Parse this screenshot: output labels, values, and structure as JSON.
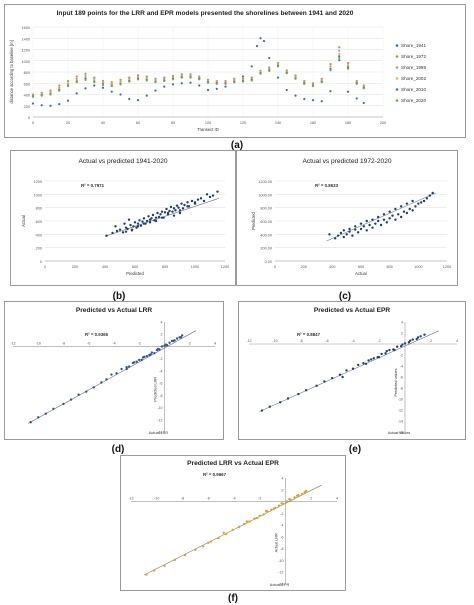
{
  "labels": {
    "a": "(a)",
    "b": "(b)",
    "c": "(c)",
    "d": "(d)",
    "e": "(e)",
    "f": "(f)"
  },
  "chart_data": [
    {
      "id": "a",
      "type": "line",
      "title": "Input 189 points for the LRR and EPR models presented the shorelines between 1941 and 2020",
      "xlabel": "Transect ID",
      "ylabel": "distance according to baseline [m]",
      "xlim": [
        0,
        200
      ],
      "ylim": [
        0,
        1600
      ],
      "xticks": [
        0,
        20,
        40,
        60,
        80,
        100,
        120,
        140,
        160,
        180,
        200
      ],
      "yticks": [
        0,
        200,
        400,
        600,
        800,
        1000,
        1200,
        1400,
        1600
      ],
      "grid": true,
      "legend_position": "right",
      "series": [
        {
          "name": "Shore_1941",
          "color": "#3d6fb0",
          "x": [
            0,
            5,
            10,
            15,
            20,
            25,
            30,
            35,
            40,
            45,
            50,
            55,
            60,
            65,
            70,
            75,
            80,
            85,
            90,
            95,
            100,
            105,
            110,
            115,
            120,
            125,
            128,
            130,
            132,
            135,
            140,
            145,
            150,
            155,
            160,
            165,
            170,
            175,
            180,
            185,
            189
          ],
          "y": [
            240,
            210,
            200,
            230,
            290,
            420,
            510,
            560,
            520,
            450,
            400,
            320,
            300,
            380,
            470,
            540,
            580,
            600,
            610,
            560,
            480,
            500,
            540,
            620,
            720,
            900,
            1260,
            1400,
            1350,
            1050,
            700,
            480,
            380,
            320,
            300,
            280,
            460,
            1010,
            450,
            330,
            250
          ]
        },
        {
          "name": "Shore_1972",
          "color": "#e8823a",
          "x": [
            0,
            5,
            10,
            15,
            20,
            25,
            30,
            35,
            40,
            45,
            50,
            55,
            60,
            65,
            70,
            75,
            80,
            85,
            90,
            95,
            100,
            105,
            110,
            115,
            120,
            125,
            130,
            135,
            140,
            145,
            150,
            155,
            160,
            165,
            170,
            175,
            180,
            185,
            189
          ],
          "y": [
            400,
            430,
            470,
            560,
            640,
            720,
            770,
            700,
            640,
            620,
            660,
            700,
            740,
            720,
            680,
            700,
            730,
            760,
            760,
            720,
            660,
            640,
            640,
            680,
            680,
            700,
            820,
            880,
            960,
            830,
            740,
            640,
            600,
            680,
            940,
            1240,
            960,
            640,
            560
          ]
        },
        {
          "name": "Shore_1989",
          "color": "#a5a5a5",
          "x": [
            0,
            5,
            10,
            15,
            20,
            25,
            30,
            35,
            40,
            45,
            50,
            55,
            60,
            65,
            70,
            75,
            80,
            85,
            90,
            95,
            100,
            105,
            110,
            115,
            120,
            125,
            130,
            135,
            140,
            145,
            150,
            155,
            160,
            165,
            170,
            175,
            180,
            185,
            189
          ],
          "y": [
            390,
            410,
            440,
            520,
            600,
            680,
            730,
            680,
            620,
            600,
            630,
            680,
            720,
            700,
            660,
            680,
            710,
            740,
            740,
            700,
            640,
            620,
            620,
            660,
            660,
            680,
            800,
            860,
            940,
            820,
            720,
            620,
            580,
            660,
            900,
            1180,
            920,
            620,
            540
          ]
        },
        {
          "name": "Shore_2002",
          "color": "#f2b82b",
          "x": [
            0,
            5,
            10,
            15,
            20,
            25,
            30,
            35,
            40,
            45,
            50,
            55,
            60,
            65,
            70,
            75,
            80,
            85,
            90,
            95,
            100,
            105,
            110,
            115,
            120,
            125,
            130,
            135,
            140,
            145,
            150,
            155,
            160,
            165,
            170,
            175,
            180,
            185,
            189
          ],
          "y": [
            380,
            400,
            420,
            500,
            580,
            650,
            700,
            650,
            600,
            580,
            610,
            660,
            700,
            680,
            640,
            660,
            690,
            720,
            720,
            690,
            630,
            610,
            610,
            640,
            650,
            670,
            790,
            840,
            920,
            800,
            700,
            610,
            570,
            640,
            870,
            1120,
            900,
            610,
            530
          ]
        },
        {
          "name": "Shore_2010",
          "color": "#4472c4",
          "x": [
            0,
            5,
            10,
            15,
            20,
            25,
            30,
            35,
            40,
            45,
            50,
            55,
            60,
            65,
            70,
            75,
            80,
            85,
            90,
            95,
            100,
            105,
            110,
            115,
            120,
            125,
            130,
            135,
            140,
            145,
            150,
            155,
            160,
            165,
            170,
            175,
            180,
            185,
            189
          ],
          "y": [
            370,
            390,
            410,
            480,
            560,
            630,
            680,
            630,
            580,
            560,
            590,
            640,
            680,
            660,
            630,
            650,
            680,
            710,
            710,
            680,
            620,
            600,
            600,
            630,
            640,
            660,
            780,
            830,
            910,
            790,
            690,
            600,
            560,
            630,
            850,
            1080,
            880,
            600,
            520
          ]
        },
        {
          "name": "Shore_2020",
          "color": "#70ad47",
          "x": [
            0,
            5,
            10,
            15,
            20,
            25,
            30,
            35,
            40,
            45,
            50,
            55,
            60,
            65,
            70,
            75,
            80,
            85,
            90,
            95,
            100,
            105,
            110,
            115,
            120,
            125,
            130,
            135,
            140,
            145,
            150,
            155,
            160,
            165,
            170,
            175,
            180,
            185,
            189
          ],
          "y": [
            360,
            380,
            400,
            470,
            550,
            620,
            660,
            620,
            570,
            550,
            580,
            630,
            670,
            650,
            620,
            640,
            670,
            700,
            700,
            670,
            610,
            590,
            590,
            620,
            630,
            650,
            770,
            820,
            900,
            780,
            680,
            590,
            550,
            620,
            830,
            1050,
            860,
            590,
            510
          ]
        }
      ]
    },
    {
      "id": "b",
      "type": "scatter",
      "title": "Actual vs predicted 1941-2020",
      "xlabel": "Predicted",
      "ylabel": "Actual",
      "annotation": "R² = 0.7971",
      "xlim": [
        0,
        1200
      ],
      "ylim": [
        0,
        1200
      ],
      "xticks": [
        0,
        200,
        400,
        600,
        800,
        1000,
        1200
      ],
      "yticks": [
        0,
        200,
        400,
        600,
        800,
        1000,
        1200
      ],
      "marker_color": "#1f3f7a",
      "trendline": [
        [
          400,
          370
        ],
        [
          1160,
          940
        ]
      ],
      "x": [
        410,
        450,
        470,
        480,
        500,
        520,
        530,
        540,
        550,
        560,
        570,
        580,
        590,
        600,
        610,
        620,
        630,
        640,
        650,
        660,
        670,
        680,
        690,
        700,
        710,
        720,
        730,
        740,
        750,
        760,
        770,
        780,
        790,
        800,
        810,
        820,
        830,
        840,
        850,
        860,
        870,
        880,
        890,
        900,
        910,
        920,
        930,
        950,
        960,
        980,
        1000,
        1020,
        1040,
        1060,
        1080,
        1100,
        1120,
        1150,
        540,
        580,
        620,
        660,
        700,
        740,
        780,
        820,
        860,
        900,
        950,
        1000
      ],
      "y": [
        380,
        420,
        520,
        450,
        470,
        430,
        560,
        500,
        480,
        620,
        540,
        470,
        520,
        580,
        500,
        560,
        610,
        530,
        590,
        640,
        560,
        600,
        670,
        580,
        640,
        690,
        610,
        650,
        720,
        660,
        700,
        740,
        650,
        730,
        780,
        700,
        750,
        810,
        740,
        790,
        760,
        830,
        800,
        720,
        860,
        790,
        840,
        880,
        820,
        900,
        860,
        920,
        940,
        900,
        1000,
        960,
        980,
        1040,
        440,
        460,
        520,
        560,
        620,
        600,
        650,
        720,
        680,
        760,
        820,
        880
      ]
    },
    {
      "id": "c",
      "type": "scatter",
      "title": "Actual vs predicted 1972-2020",
      "xlabel": "Actual",
      "ylabel": "Predicted",
      "annotation": "R² = 0.8633",
      "xlim": [
        0,
        1200
      ],
      "ylim": [
        0,
        1200
      ],
      "xticks": [
        0,
        200,
        400,
        600,
        800,
        1000,
        1200
      ],
      "yticks": [
        "0.00",
        "200.00",
        "400.00",
        "600.00",
        "800.00",
        "1000.00",
        "1200.00"
      ],
      "marker_color": "#1f3f7a",
      "trendline": [
        [
          360,
          300
        ],
        [
          1120,
          1020
        ]
      ],
      "x": [
        380,
        420,
        440,
        460,
        480,
        500,
        520,
        540,
        560,
        580,
        600,
        620,
        640,
        660,
        680,
        700,
        720,
        740,
        760,
        780,
        800,
        820,
        840,
        860,
        880,
        900,
        920,
        940,
        960,
        980,
        1000,
        1020,
        1040,
        1060,
        1080,
        1100,
        480,
        520,
        560,
        600,
        640,
        680,
        720,
        760,
        800,
        840,
        880,
        920,
        960
      ],
      "y": [
        400,
        340,
        380,
        420,
        360,
        400,
        440,
        380,
        470,
        430,
        480,
        520,
        460,
        540,
        500,
        560,
        600,
        540,
        620,
        580,
        640,
        680,
        620,
        700,
        660,
        740,
        720,
        780,
        760,
        820,
        860,
        880,
        900,
        940,
        980,
        1020,
        460,
        480,
        520,
        560,
        600,
        620,
        660,
        700,
        740,
        780,
        820,
        860,
        900
      ]
    },
    {
      "id": "d",
      "type": "scatter",
      "title": "Predicted vs Actual LRR",
      "xlabel": "Actual LRR",
      "ylabel": "Predicted LRR",
      "annotation": "R² = 0.9366",
      "xlim": [
        -12,
        4
      ],
      "ylim": [
        -14,
        4
      ],
      "xticks": [
        -12,
        -10,
        -8,
        -6,
        -4,
        -2,
        0,
        2,
        4
      ],
      "yticks": [
        -14,
        -12,
        -10,
        -8,
        -6,
        -4,
        -2,
        0,
        2,
        4
      ],
      "marker_color": "#2f5597",
      "trendline": [
        [
          -10.8,
          -12.6
        ],
        [
          2.5,
          2.6
        ]
      ],
      "x": [
        -10.6,
        -10,
        -9.4,
        -8.8,
        -8,
        -7.4,
        -6.8,
        -6.2,
        -5.6,
        -5,
        -4.6,
        -4.2,
        -3.8,
        -3.4,
        -3,
        -2.8,
        -2.5,
        -2.2,
        -2,
        -1.8,
        -1.6,
        -1.4,
        -1.2,
        -1,
        -0.8,
        -0.6,
        -0.4,
        -0.2,
        0,
        0.2,
        0.4,
        0.6,
        0.8,
        1,
        1.2,
        1.4,
        -3,
        -2.4,
        -1.7,
        -1.1,
        -0.5,
        0.1,
        0.7,
        1.3
      ],
      "y": [
        -12.4,
        -11.6,
        -11,
        -10.2,
        -9.4,
        -8.7,
        -7.9,
        -7.4,
        -6.7,
        -5.9,
        -5.4,
        -4.6,
        -4.4,
        -3.7,
        -3.4,
        -3.3,
        -2.7,
        -2.5,
        -2.2,
        -2.2,
        -1.7,
        -1.6,
        -1.4,
        -1,
        -1.1,
        -0.6,
        -0.5,
        0,
        0.1,
        0.2,
        0.6,
        0.9,
        1,
        1.3,
        1.5,
        1.8,
        -3.7,
        -2.6,
        -1.8,
        -1.3,
        -0.4,
        0.3,
        0.9,
        1.5
      ]
    },
    {
      "id": "e",
      "type": "scatter",
      "title": "Predicted vs Actual EPR",
      "xlabel": "Actual values",
      "ylabel": "Predicted values",
      "annotation": "R² = 0.8847",
      "xlim": [
        -12,
        4
      ],
      "ylim": [
        -16,
        4
      ],
      "xticks": [
        -12,
        -10,
        -8,
        -6,
        -4,
        -2,
        0,
        2,
        4
      ],
      "yticks": [
        -16,
        -14,
        -12,
        -10,
        -8,
        -6,
        -4,
        -2,
        0,
        2,
        4
      ],
      "marker_color": "#1f3f7a",
      "trendline": [
        [
          -11.2,
          -12.3
        ],
        [
          2.6,
          2.4
        ]
      ],
      "x": [
        -11,
        -10.4,
        -9.6,
        -9,
        -8.2,
        -7.6,
        -6.8,
        -6.2,
        -5.6,
        -5,
        -4.5,
        -4,
        -3.6,
        -3.2,
        -2.8,
        -2.4,
        -2.1,
        -1.8,
        -1.5,
        -1.2,
        -0.9,
        -0.6,
        -0.3,
        0,
        0.3,
        0.6,
        0.9,
        1.2,
        1.5,
        -3,
        -2.6,
        -2,
        -1.4,
        -0.8,
        -0.2,
        0.4,
        1,
        -4.8
      ],
      "y": [
        -12.1,
        -11.4,
        -10.6,
        -9.9,
        -9.1,
        -8.4,
        -7.6,
        -6.8,
        -6.2,
        -5.6,
        -4.8,
        -4.5,
        -3.8,
        -3.5,
        -3,
        -2.6,
        -2.4,
        -1.8,
        -1.7,
        -1.1,
        -1,
        -0.5,
        -0.4,
        0.1,
        0.3,
        0.8,
        0.9,
        1.4,
        1.7,
        -3.6,
        -2.8,
        -2.4,
        -1.3,
        -1.1,
        -0.1,
        0.6,
        1.2,
        -6
      ]
    },
    {
      "id": "f",
      "type": "scatter",
      "title": "Predicted LRR vs Actual EPR",
      "xlabel": "Actual EPR",
      "ylabel": "Actual LRR",
      "annotation": "R² = 0.9667",
      "xlim": [
        -12,
        4
      ],
      "ylim": [
        -14,
        4
      ],
      "xticks": [
        -12,
        -10,
        -8,
        -6,
        -4,
        -2,
        0,
        2,
        4
      ],
      "yticks": [
        -14,
        -12,
        -10,
        -8,
        -6,
        -4,
        -2,
        0,
        2,
        4
      ],
      "marker_color": "#e0a020",
      "trendline": [
        [
          -11,
          -12.5
        ],
        [
          2.8,
          2.8
        ]
      ],
      "x": [
        -10.8,
        -10.2,
        -9.4,
        -8.6,
        -7.8,
        -7,
        -6.4,
        -5.8,
        -5.2,
        -4.6,
        -4.1,
        -3.6,
        -3.2,
        -2.8,
        -2.4,
        -2,
        -1.7,
        -1.4,
        -1.1,
        -0.8,
        -0.5,
        -0.2,
        0.1,
        0.4,
        0.7,
        1,
        1.3,
        1.6,
        -3,
        -2.2,
        -1.5,
        -0.9,
        -0.3,
        0.3,
        0.9,
        1.5,
        -6,
        -4.8
      ],
      "y": [
        -12.4,
        -11.7,
        -10.9,
        -9.9,
        -9.1,
        -8.2,
        -7.6,
        -6.8,
        -6.2,
        -5.5,
        -4.8,
        -4.3,
        -3.8,
        -3.4,
        -2.9,
        -2.4,
        -2.2,
        -1.7,
        -1.4,
        -1.1,
        -0.7,
        -0.4,
        0,
        0.3,
        0.7,
        1.1,
        1.3,
        1.8,
        -3.4,
        -2.8,
        -1.6,
        -1.2,
        -0.3,
        0.4,
        1,
        1.6,
        -7,
        -5.3
      ]
    }
  ]
}
